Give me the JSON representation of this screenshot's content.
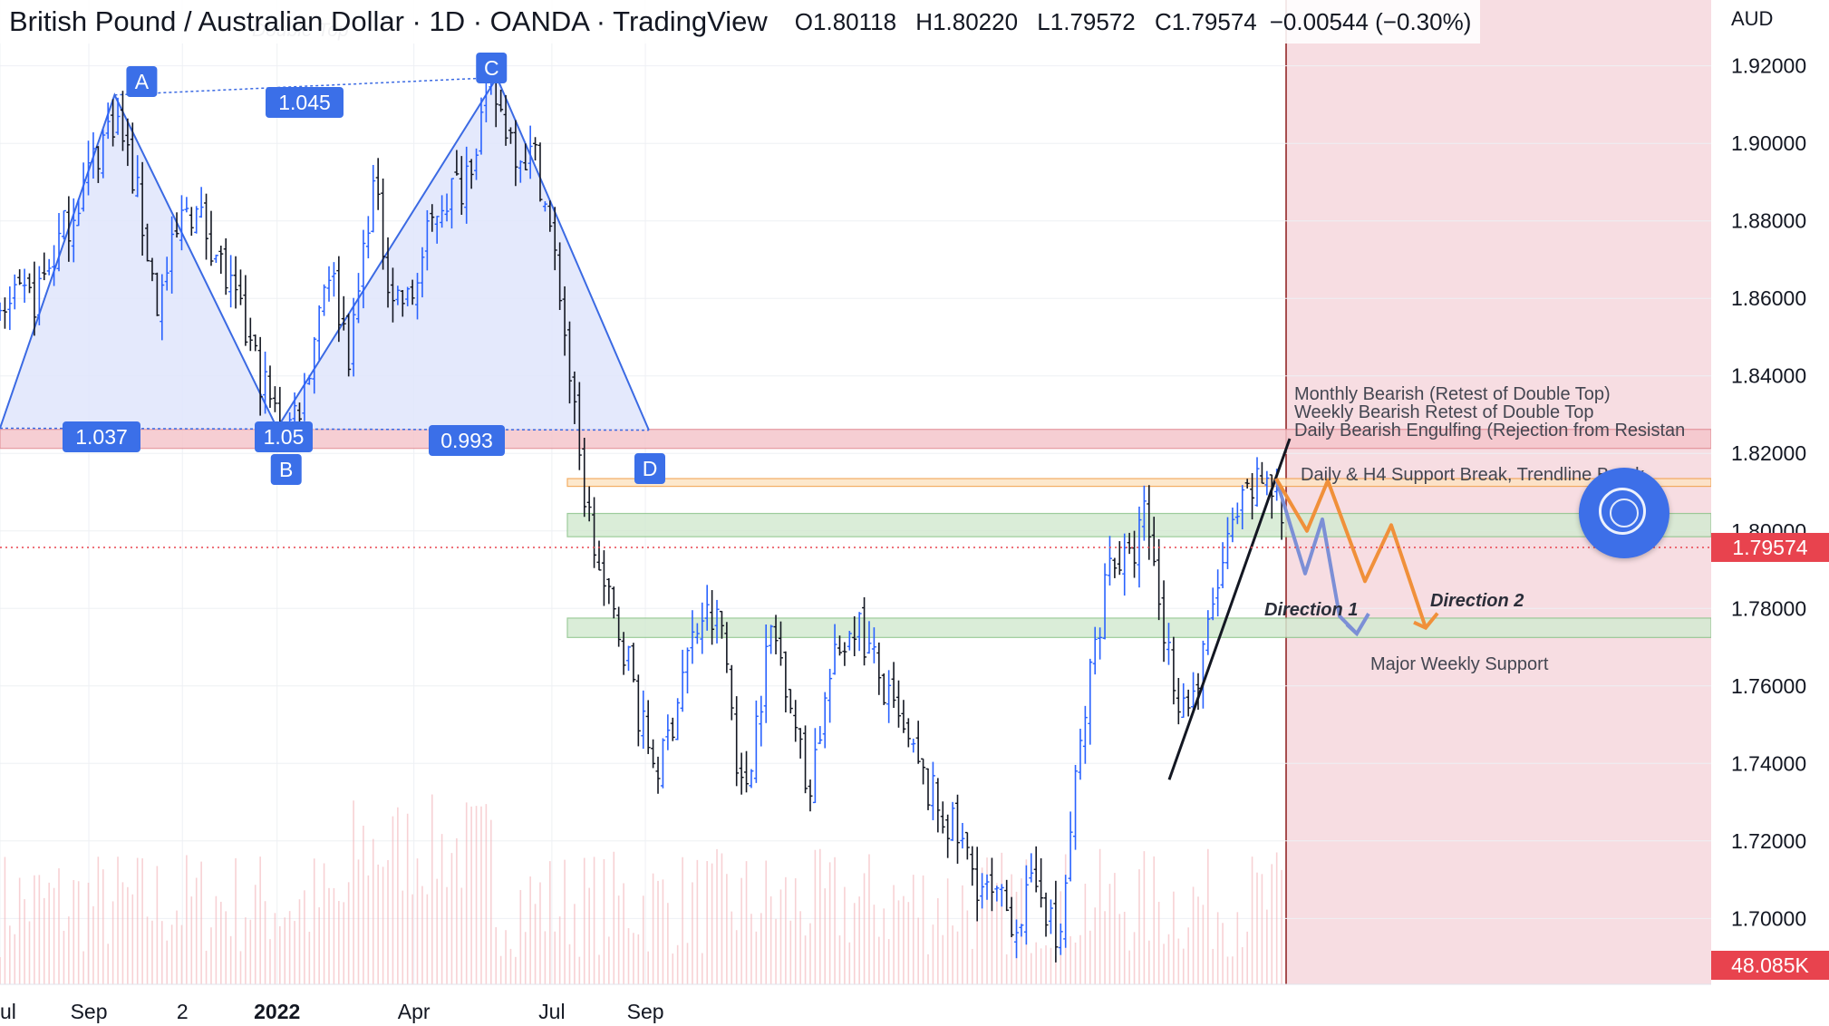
{
  "header": {
    "title": "British Pound / Australian Dollar · 1D · OANDA · TradingView",
    "open": "O1.80118",
    "high": "H1.80220",
    "low": "L1.79572",
    "close": "C1.79574",
    "change": "−0.00544 (−0.30%)"
  },
  "chart_data": {
    "type": "candlestick",
    "symbol": "GBPAUD",
    "interval": "1D",
    "currency_label": "AUD",
    "y_ticks": [
      "1.92000",
      "1.90000",
      "1.88000",
      "1.86000",
      "1.84000",
      "1.82000",
      "1.80000",
      "1.78000",
      "1.76000",
      "1.74000",
      "1.72000",
      "1.70000"
    ],
    "y_range": [
      1.683,
      1.937
    ],
    "x_ticks": [
      {
        "label": "ul",
        "pos": 0.0
      },
      {
        "label": "Sep",
        "pos": 0.076
      },
      {
        "label": "2",
        "pos": 0.156
      },
      {
        "label": "2022",
        "pos": 0.237,
        "bold": true
      },
      {
        "label": "Apr",
        "pos": 0.354
      },
      {
        "label": "Jul",
        "pos": 0.472
      },
      {
        "label": "Sep",
        "pos": 0.552
      }
    ],
    "last_price": "1.79574",
    "last_price_value": 1.79574,
    "volume_label": "48.085K",
    "price_anchors": [
      [
        0,
        1.856
      ],
      [
        0.03,
        1.86
      ],
      [
        0.065,
        1.885
      ],
      [
        0.098,
        1.908
      ],
      [
        0.115,
        1.89
      ],
      [
        0.135,
        1.858
      ],
      [
        0.16,
        1.885
      ],
      [
        0.18,
        1.876
      ],
      [
        0.205,
        1.855
      ],
      [
        0.235,
        1.83
      ],
      [
        0.245,
        1.826
      ],
      [
        0.26,
        1.836
      ],
      [
        0.28,
        1.87
      ],
      [
        0.3,
        1.845
      ],
      [
        0.318,
        1.89
      ],
      [
        0.335,
        1.862
      ],
      [
        0.35,
        1.858
      ],
      [
        0.375,
        1.885
      ],
      [
        0.395,
        1.89
      ],
      [
        0.42,
        1.914
      ],
      [
        0.44,
        1.9
      ],
      [
        0.46,
        1.895
      ],
      [
        0.48,
        1.86
      ],
      [
        0.495,
        1.818
      ],
      [
        0.515,
        1.785
      ],
      [
        0.535,
        1.77
      ],
      [
        0.55,
        1.748
      ],
      [
        0.565,
        1.738
      ],
      [
        0.585,
        1.765
      ],
      [
        0.6,
        1.778
      ],
      [
        0.618,
        1.775
      ],
      [
        0.635,
        1.73
      ],
      [
        0.66,
        1.775
      ],
      [
        0.675,
        1.76
      ],
      [
        0.69,
        1.732
      ],
      [
        0.71,
        1.762
      ],
      [
        0.73,
        1.778
      ],
      [
        0.745,
        1.768
      ],
      [
        0.76,
        1.755
      ],
      [
        0.79,
        1.735
      ],
      [
        0.82,
        1.72
      ],
      [
        0.845,
        1.705
      ],
      [
        0.87,
        1.7
      ],
      [
        0.89,
        1.71
      ],
      [
        0.905,
        1.69
      ],
      [
        0.92,
        1.735
      ],
      [
        0.935,
        1.768
      ],
      [
        0.95,
        1.795
      ],
      [
        0.965,
        1.79
      ],
      [
        0.98,
        1.805
      ],
      [
        0.995,
        1.775
      ],
      [
        1.01,
        1.755
      ],
      [
        1.025,
        1.76
      ],
      [
        1.04,
        1.785
      ],
      [
        1.055,
        1.8
      ],
      [
        1.07,
        1.81
      ],
      [
        1.085,
        1.815
      ],
      [
        1.1,
        1.8
      ]
    ],
    "plot_end": 1.1,
    "vertical_marker_pos": 1.1,
    "projection_shade_color": "#f7dde2"
  },
  "pattern": {
    "name": "Double Top",
    "points": [
      {
        "label": "A",
        "pos": 0.098,
        "price": 1.9125
      },
      {
        "label": "B",
        "pos": 0.237,
        "price": 1.8265
      },
      {
        "label": "C",
        "pos": 0.425,
        "price": 1.917
      },
      {
        "label": "D",
        "pos": 0.555,
        "price": 1.826
      }
    ],
    "start": {
      "pos": 0.0,
      "price": 1.8265
    },
    "ratios": {
      "ab": "1.037",
      "ac": "1.045",
      "b_overlay": "1.05",
      "cd": "0.993"
    }
  },
  "annotations": {
    "notes": [
      "Monthly Bearish (Retest of Double Top)",
      "Weekly Bearish Retest of Double Top",
      "Daily Bearish Engulfing (Rejection from Resistan"
    ],
    "support_break": "Daily & H4 Support Break, Trendline Break",
    "direction_1": "Direction 1",
    "direction_2": "Direction 2",
    "major_support": "Major Weekly Support"
  },
  "zones": [
    {
      "name": "resistance",
      "low": 1.8213,
      "high": 1.8262,
      "color": "#f5c6cc",
      "border": "#e08890"
    },
    {
      "name": "support-break",
      "low": 1.8115,
      "high": 1.8135,
      "color": "#fde4c4",
      "border": "#f2a04a"
    },
    {
      "name": "support-upper",
      "low": 1.7985,
      "high": 1.8045,
      "color": "#d4ead2",
      "border": "#8cc48a"
    },
    {
      "name": "major-weekly-support",
      "low": 1.7725,
      "high": 1.7775,
      "color": "#d4ead2",
      "border": "#8cc48a"
    }
  ],
  "colors": {
    "accent": "#2962ff",
    "pattern_fill": "#dfe5fb",
    "pattern_line": "#3b6ae3",
    "label_blue": "#3b6fe8",
    "price_red": "#e8434e",
    "orange": "#f0903a",
    "projection_blue": "#7c8fd6",
    "trendline": "#131722"
  },
  "controls": {
    "circle_button": "target-circle-icon"
  }
}
